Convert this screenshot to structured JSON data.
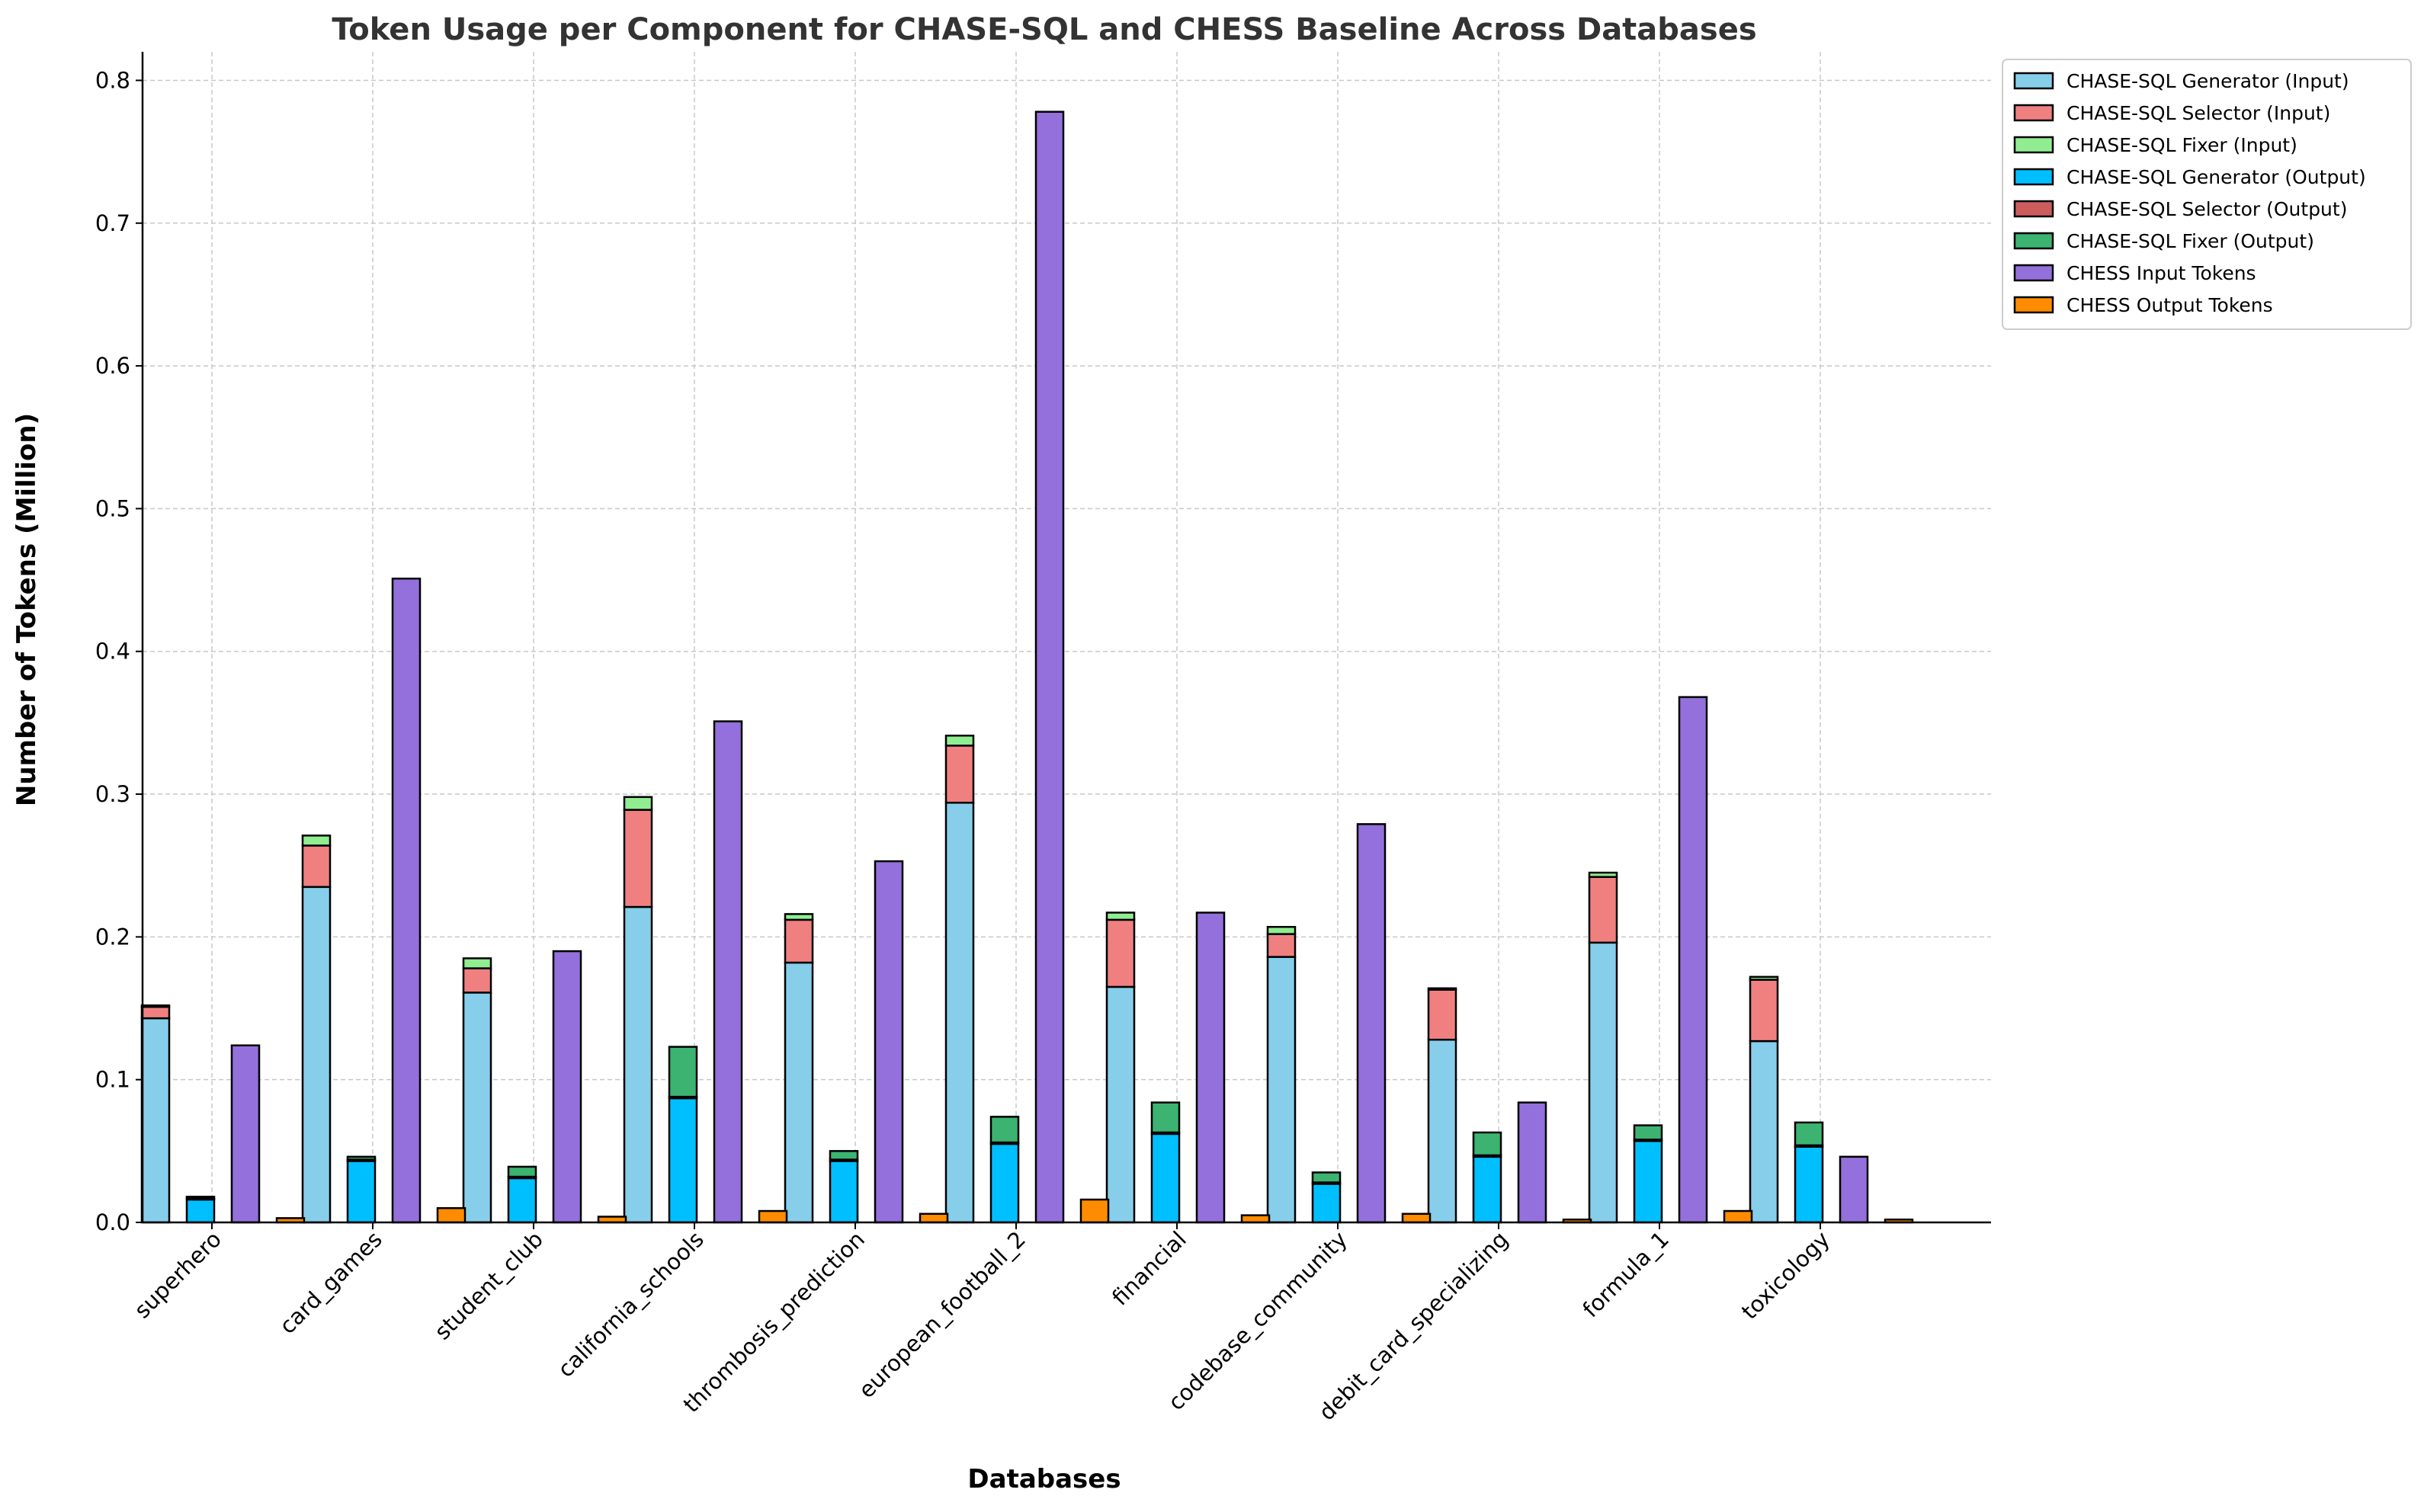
{
  "chart_data": {
    "type": "bar",
    "title": "Token Usage per Component for CHASE-SQL and CHESS Baseline Across Databases",
    "xlabel": "Databases",
    "ylabel": "Number of Tokens (Million)",
    "ylim": [
      0,
      0.82
    ],
    "yticks": [
      0.0,
      0.1,
      0.2,
      0.3,
      0.4,
      0.5,
      0.6,
      0.7,
      0.8
    ],
    "ytick_labels": [
      "0.0",
      "0.1",
      "0.2",
      "0.3",
      "0.4",
      "0.5",
      "0.6",
      "0.7",
      "0.8"
    ],
    "grid": true,
    "legend_position": "outside top-right",
    "categories": [
      "superhero",
      "card_games",
      "student_club",
      "california_schools",
      "thrombosis_prediction",
      "european_football_2",
      "financial",
      "codebase_community",
      "debit_card_specializing",
      "formula_1",
      "toxicology"
    ],
    "series": [
      {
        "name": "CHASE-SQL Generator (Input)",
        "color": "#87CEEB",
        "group": 0,
        "stack_order": 0,
        "values": [
          0.143,
          0.235,
          0.161,
          0.221,
          0.182,
          0.294,
          0.165,
          0.186,
          0.128,
          0.196,
          0.127
        ]
      },
      {
        "name": "CHASE-SQL Selector (Input)",
        "color": "#F08080",
        "group": 0,
        "stack_order": 1,
        "values": [
          0.008,
          0.029,
          0.017,
          0.068,
          0.03,
          0.04,
          0.047,
          0.016,
          0.035,
          0.046,
          0.043
        ]
      },
      {
        "name": "CHASE-SQL Fixer (Input)",
        "color": "#90EE90",
        "group": 0,
        "stack_order": 2,
        "values": [
          0.001,
          0.007,
          0.007,
          0.009,
          0.004,
          0.007,
          0.005,
          0.005,
          0.001,
          0.003,
          0.002
        ]
      },
      {
        "name": "CHASE-SQL Generator (Output)",
        "color": "#00BFFF",
        "group": 1,
        "stack_order": 0,
        "values": [
          0.016,
          0.043,
          0.031,
          0.087,
          0.043,
          0.055,
          0.062,
          0.027,
          0.046,
          0.057,
          0.053
        ]
      },
      {
        "name": "CHASE-SQL Selector (Output)",
        "color": "#CD5C5C",
        "group": 1,
        "stack_order": 1,
        "values": [
          0.001,
          0.001,
          0.001,
          0.001,
          0.001,
          0.001,
          0.001,
          0.001,
          0.001,
          0.001,
          0.001
        ]
      },
      {
        "name": "CHASE-SQL Fixer (Output)",
        "color": "#3CB371",
        "group": 1,
        "stack_order": 2,
        "values": [
          0.001,
          0.002,
          0.007,
          0.035,
          0.006,
          0.018,
          0.021,
          0.007,
          0.016,
          0.01,
          0.016
        ]
      },
      {
        "name": "CHESS Input Tokens",
        "color": "#9370DB",
        "group": 2,
        "stack_order": 0,
        "values": [
          0.124,
          0.451,
          0.19,
          0.351,
          0.253,
          0.778,
          0.217,
          0.279,
          0.084,
          0.368,
          0.046
        ]
      },
      {
        "name": "CHESS Output Tokens",
        "color": "#FF8C00",
        "group": 3,
        "stack_order": 0,
        "values": [
          0.003,
          0.01,
          0.004,
          0.008,
          0.006,
          0.016,
          0.005,
          0.006,
          0.002,
          0.008,
          0.002
        ]
      }
    ]
  }
}
